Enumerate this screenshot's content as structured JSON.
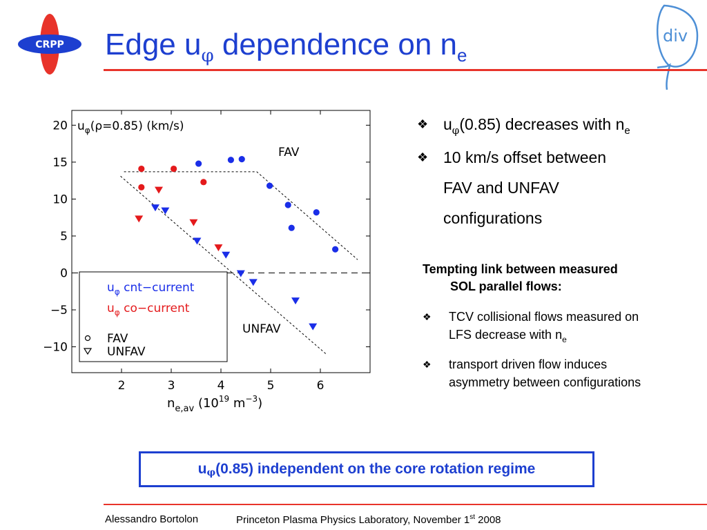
{
  "slide": {
    "title": {
      "main": "Edge u",
      "phi": "φ",
      "mid": " dependence on n",
      "sub": "e"
    },
    "logo_text": "CRPP",
    "div_logo_text": "div",
    "bullets": [
      {
        "prefix": "u",
        "phi": "φ",
        "text": "(0.85) decreases with n",
        "sub": "e"
      },
      {
        "lines": [
          "10 km/s offset between",
          "FAV and UNFAV",
          "configurations"
        ]
      }
    ],
    "tempting": {
      "line1": "Tempting link between measured",
      "line2": "SOL parallel flows:"
    },
    "sub_bullets": [
      {
        "line1": "TCV collisional flows measured on",
        "line2": "LFS decrease with n",
        "sub": "e"
      },
      {
        "line1": "transport driven flow induces",
        "line2": "asymmetry between configurations"
      }
    ],
    "box": {
      "prefix": "u",
      "phi": "φ",
      "text": "(0.85) independent on the core rotation regime"
    },
    "footer": {
      "author": "Alessandro Bortolon",
      "lab": "Princeton Plasma Physics Laboratory, November 1",
      "lab_sup": "st",
      "lab_end": " 2008"
    },
    "marker_glyph": "❖",
    "colors": {
      "accent_blue": "#1d3fd0",
      "accent_red": "#e8332a",
      "co_current": "#e41a1c",
      "cnt_current": "#1a2ee8"
    }
  },
  "chart_data": {
    "type": "scatter",
    "xlim": [
      1.0,
      7.0
    ],
    "ylim": [
      -13.5,
      22
    ],
    "xticks": [
      2,
      3,
      4,
      5,
      6
    ],
    "yticks": [
      20,
      15,
      10,
      5,
      0,
      -5,
      -10
    ],
    "ytick_labels": [
      "20",
      "15",
      "10",
      "5",
      "0",
      "−5",
      "−10"
    ],
    "xlabel": {
      "base": "n",
      "sub": "e,av",
      "unit_open": " (10",
      "exp": "19",
      "unit_mid": " m",
      "exp2": "−3",
      "unit_close": ")"
    },
    "ylabel_inside": {
      "base": "u",
      "sub": "φ",
      "rest": "(ρ=0.85) (km/s)"
    },
    "annotations": {
      "fav": "FAV",
      "unfav": "UNFAV"
    },
    "legend": {
      "placement": "bottom-left",
      "cnt": {
        "u": "u",
        "phi": "φ",
        "text": " cnt−current"
      },
      "co": {
        "u": "u",
        "phi": "φ",
        "text": " co−current"
      },
      "fav": "FAV",
      "unfav": "UNFAV"
    },
    "series": [
      {
        "name": "co−current FAV",
        "marker": "circle",
        "color": "#e41a1c",
        "points": [
          [
            2.4,
            14.1
          ],
          [
            2.4,
            11.6
          ],
          [
            3.05,
            14.1
          ],
          [
            3.65,
            12.3
          ]
        ]
      },
      {
        "name": "cnt−current FAV",
        "marker": "circle",
        "color": "#1a2ee8",
        "points": [
          [
            3.55,
            14.8
          ],
          [
            4.2,
            15.3
          ],
          [
            4.42,
            15.4
          ],
          [
            4.98,
            11.8
          ],
          [
            5.35,
            9.2
          ],
          [
            5.42,
            6.1
          ],
          [
            5.92,
            8.2
          ],
          [
            6.3,
            3.2
          ]
        ]
      },
      {
        "name": "co−current UNFAV",
        "marker": "triangle",
        "color": "#e41a1c",
        "points": [
          [
            2.35,
            7.3
          ],
          [
            2.75,
            11.2
          ],
          [
            3.45,
            6.8
          ],
          [
            3.95,
            3.4
          ]
        ]
      },
      {
        "name": "cnt−current UNFAV",
        "marker": "triangle",
        "color": "#1a2ee8",
        "points": [
          [
            2.68,
            8.8
          ],
          [
            2.88,
            8.4
          ],
          [
            3.52,
            4.3
          ],
          [
            4.1,
            2.4
          ],
          [
            4.4,
            -0.1
          ],
          [
            4.65,
            -1.3
          ],
          [
            5.5,
            -3.8
          ],
          [
            5.85,
            -7.3
          ]
        ]
      }
    ],
    "fit_lines": [
      {
        "points": [
          [
            2.05,
            13.7
          ],
          [
            4.72,
            13.7
          ],
          [
            6.75,
            1.8
          ]
        ]
      },
      {
        "points": [
          [
            1.98,
            13.1
          ],
          [
            6.12,
            -11.0
          ]
        ]
      }
    ],
    "zero_line": 0,
    "grid": false
  }
}
